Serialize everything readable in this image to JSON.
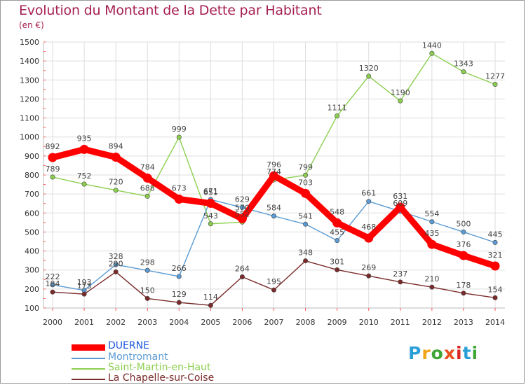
{
  "title": "Evolution du Montant de la Dette par Habitant",
  "subtitle": "(en €)",
  "logo": {
    "letters": [
      "P",
      "r",
      "o",
      "x",
      "i",
      "t",
      "i"
    ],
    "colors": [
      "#2a9fd6",
      "#f2a41a",
      "#3fa535",
      "#e8501e",
      "#d7271f",
      "#2a9fd6",
      "#3fa535"
    ]
  },
  "colors": {
    "grid": "#dddddd",
    "axis": "#bbbbbb",
    "tick_mark": "#ff5555"
  },
  "chart_data": {
    "type": "line",
    "title": "Evolution du Montant de la Dette par Habitant",
    "ylabel": "(en €)",
    "xlabel": "",
    "x": [
      "2000",
      "2001",
      "2002",
      "2003",
      "2004",
      "2005",
      "2006",
      "2007",
      "2008",
      "2009",
      "2010",
      "2011",
      "2012",
      "2013",
      "2014"
    ],
    "ylim": [
      100,
      1500
    ],
    "yticks": [
      100,
      200,
      300,
      400,
      500,
      600,
      700,
      800,
      900,
      1000,
      1100,
      1200,
      1300,
      1400,
      1500
    ],
    "grid": true,
    "legend_position": "bottom-left",
    "series": [
      {
        "name": "DUERNE",
        "color": "#ff0000",
        "emphasis": true,
        "values": [
          892,
          935,
          894,
          784,
          673,
          651,
          570,
          796,
          703,
          548,
          468,
          631,
          435,
          376,
          321
        ]
      },
      {
        "name": "Montromant",
        "color": "#5a9bd4",
        "values": [
          222,
          193,
          328,
          298,
          266,
          671,
          629,
          584,
          541,
          455,
          661,
          609,
          554,
          500,
          445
        ]
      },
      {
        "name": "Saint-Martin-en-Haut",
        "color": "#8ccf4f",
        "values": [
          789,
          752,
          720,
          688,
          999,
          543,
          552,
          774,
          799,
          1111,
          1320,
          1190,
          1440,
          1343,
          1277
        ]
      },
      {
        "name": "La Chapelle-sur-Coise",
        "color": "#7a2a2a",
        "values": [
          184,
          173,
          290,
          150,
          129,
          114,
          264,
          195,
          348,
          301,
          269,
          237,
          210,
          178,
          154
        ]
      }
    ]
  }
}
